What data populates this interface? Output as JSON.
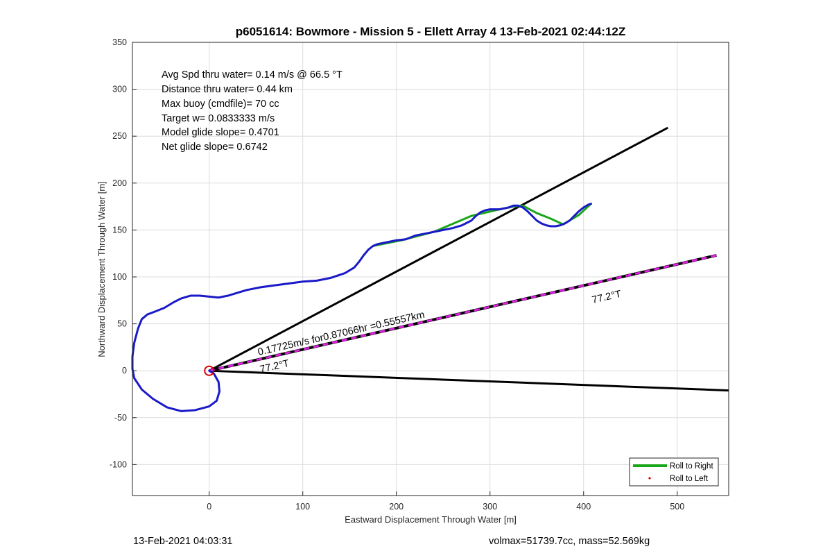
{
  "chart_data": {
    "type": "line",
    "title": "p6051614: Bowmore - Mission 5 - Ellett Array 4 13-Feb-2021 02:44:12Z",
    "xlabel": "Eastward Displacement Through Water [m]",
    "ylabel": "Northward Displacement Through Water [m]",
    "xlim": [
      -82,
      555
    ],
    "ylim": [
      -133,
      350
    ],
    "xticks": [
      0,
      100,
      200,
      300,
      400,
      500
    ],
    "yticks": [
      -100,
      -50,
      0,
      50,
      100,
      150,
      200,
      250,
      300,
      350
    ],
    "grid": true,
    "legend_position": "bottom-right",
    "stats_text": [
      "Avg Spd thru water=  0.14 m/s @  66.5 °T",
      "Distance thru water=  0.44 km",
      "Max buoy (cmdfile)= 70 cc",
      "Target w= 0.0833333 m/s",
      "Model glide slope= 0.4701",
      "Net glide slope= 0.6742"
    ],
    "annotations": {
      "current_label": "0.17725m/s for0.87066hr =0.55557km",
      "bearing_label_near": "77.2°T",
      "bearing_label_far": "77.2°T"
    },
    "legend": [
      {
        "label": "Roll to Right",
        "color": "#1aa61a",
        "style": "line"
      },
      {
        "label": "Roll to Left",
        "color": "#dd0000",
        "style": "dot"
      }
    ],
    "colors": {
      "track": "#1a1ac8",
      "roll_right": "#1aa61a",
      "bearing_dash": "#e020e0",
      "lines": "#000000",
      "start_marker": "#dd0000"
    },
    "series": [
      {
        "role": "track",
        "x": [
          0,
          5,
          10,
          11,
          8,
          0,
          -15,
          -30,
          -45,
          -60,
          -72,
          -80,
          -82,
          -82,
          -80,
          -76,
          -72,
          -66,
          -58,
          -48,
          -38,
          -30,
          -20,
          -10,
          0,
          10,
          20,
          30,
          40,
          55,
          70,
          85,
          100,
          115,
          130,
          145,
          155,
          160,
          165,
          170,
          175,
          180,
          190,
          200,
          210,
          220,
          230,
          240,
          250,
          260,
          270,
          280,
          285,
          290,
          295,
          300,
          305,
          310,
          315,
          320,
          325,
          330,
          335,
          340,
          345,
          350,
          355,
          360,
          365,
          370,
          375,
          380,
          385,
          390,
          395,
          400,
          405,
          408
        ],
        "y": [
          0,
          -3,
          -12,
          -22,
          -32,
          -38,
          -42,
          -43,
          -39,
          -30,
          -20,
          -8,
          2,
          15,
          30,
          45,
          55,
          60,
          63,
          67,
          73,
          77,
          80,
          80,
          79,
          78,
          80,
          83,
          86,
          89,
          91,
          93,
          95,
          96,
          99,
          104,
          110,
          116,
          123,
          129,
          133,
          135,
          137,
          139,
          140,
          144,
          146,
          148,
          150,
          152,
          155,
          160,
          165,
          169,
          171,
          172,
          172,
          172,
          173,
          174,
          176,
          176,
          174,
          170,
          165,
          160,
          157,
          155,
          154,
          154,
          155,
          157,
          160,
          165,
          170,
          174,
          177,
          178
        ]
      },
      {
        "role": "roll_right",
        "x": [
          175,
          205,
          240,
          280,
          310,
          325,
          335,
          350,
          365,
          378,
          395,
          408
        ],
        "y": [
          133,
          139,
          148,
          165,
          172,
          175,
          176,
          168,
          162,
          156,
          166,
          178
        ]
      },
      {
        "role": "slope_line_upper",
        "x": [
          0,
          490
        ],
        "y": [
          0,
          259
        ]
      },
      {
        "role": "slope_line_lower",
        "x": [
          0,
          555
        ],
        "y": [
          0,
          -21
        ]
      },
      {
        "role": "current_vector",
        "x": [
          0,
          542
        ],
        "y": [
          0,
          123
        ]
      }
    ],
    "start_point": {
      "x": 0,
      "y": 0
    }
  },
  "footer": {
    "left": "13-Feb-2021 04:03:31",
    "right": "volmax=51739.7cc, mass=52.569kg"
  }
}
